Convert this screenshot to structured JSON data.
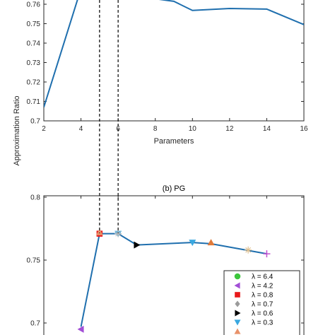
{
  "shared": {
    "ylabel": "Approximation Ratio",
    "dashed_x": [
      5,
      6
    ],
    "line_color": "#1f6fae"
  },
  "chart_data": [
    {
      "type": "line",
      "title": "",
      "xlabel": "Parameters",
      "ylabel": "",
      "xlim": [
        2,
        16
      ],
      "ylim": [
        0.7,
        0.765
      ],
      "xticks": [
        "2",
        "4",
        "6",
        "8",
        "10",
        "12",
        "14",
        "16"
      ],
      "yticks": [
        "0.7",
        "0.71",
        "0.72",
        "0.73",
        "0.74",
        "0.75",
        "0.76"
      ],
      "grid": false,
      "series": [
        {
          "x": [
            2,
            4,
            9,
            10,
            12,
            14,
            16
          ],
          "y": [
            0.707,
            0.768,
            0.7615,
            0.7568,
            0.7578,
            0.7575,
            0.7495
          ]
        }
      ]
    },
    {
      "type": "line",
      "title": "(b) PG",
      "xlabel": "",
      "ylabel": "",
      "xlim": [
        2,
        16
      ],
      "ylim": [
        0.69,
        0.8
      ],
      "yticks": [
        "0.7",
        "0.75",
        "0.8"
      ],
      "grid": false,
      "series": [
        {
          "x": [
            4,
            5,
            6,
            7,
            10,
            11,
            14
          ],
          "y": [
            0.697,
            0.771,
            0.771,
            0.762,
            0.764,
            0.763,
            0.755
          ]
        }
      ],
      "markers": [
        {
          "x": 4,
          "y": 0.695,
          "shape": "tri-left",
          "color": "#a24ed6"
        },
        {
          "x": 5,
          "y": 0.771,
          "shape": "square",
          "color": "#e8191b"
        },
        {
          "x": 5,
          "y": 0.772,
          "shape": "tri-up",
          "color": "#e8926a"
        },
        {
          "x": 6,
          "y": 0.771,
          "shape": "tri-down",
          "color": "#3aa8e0"
        },
        {
          "x": 6,
          "y": 0.771,
          "shape": "star",
          "color": "#bbbbbb"
        },
        {
          "x": 7,
          "y": 0.762,
          "shape": "tri-right",
          "color": "#000000"
        },
        {
          "x": 10,
          "y": 0.764,
          "shape": "tri-down",
          "color": "#3aa8e0"
        },
        {
          "x": 11,
          "y": 0.764,
          "shape": "tri-up",
          "color": "#e07a3a"
        },
        {
          "x": 13,
          "y": 0.758,
          "shape": "star",
          "color": "#e0c090"
        },
        {
          "x": 14,
          "y": 0.755,
          "shape": "plus",
          "color": "#c050d0"
        }
      ],
      "legend": {
        "placement": "bottom-right",
        "entries": [
          {
            "label": "λ = 6.4",
            "shape": "circle",
            "color": "#3cc63c"
          },
          {
            "label": "λ = 4.2",
            "shape": "tri-left",
            "color": "#a24ed6"
          },
          {
            "label": "λ = 0.8",
            "shape": "square",
            "color": "#e8191b"
          },
          {
            "label": "λ = 0.7",
            "shape": "diamond",
            "color": "#9b9b9b"
          },
          {
            "label": "λ = 0.6",
            "shape": "tri-right",
            "color": "#000000"
          },
          {
            "label": "λ = 0.3",
            "shape": "tri-down",
            "color": "#3aa8e0"
          },
          {
            "label": "",
            "shape": "tri-up",
            "color": "#e8926a"
          }
        ]
      }
    }
  ]
}
